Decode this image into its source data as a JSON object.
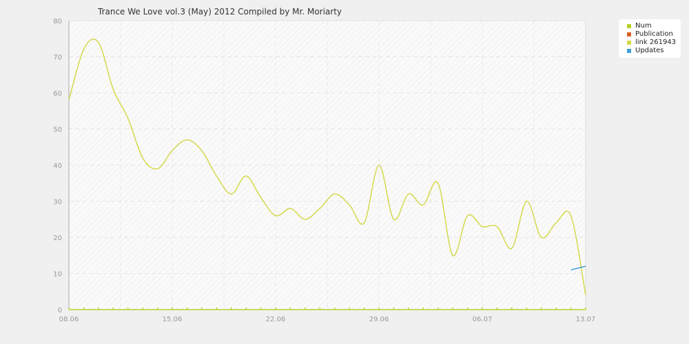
{
  "chart_data": {
    "type": "line",
    "title": "Trance We Love vol.3 (May) 2012 Compiled by Mr. Moriarty",
    "xlabel": "",
    "ylabel": "",
    "x_start": "2012-06-08",
    "x_end": "2012-07-13",
    "x_tick_labels": [
      "08.06",
      "15.06",
      "22.06",
      "29.06",
      "06.07",
      "13.07"
    ],
    "ylim": [
      0,
      80
    ],
    "y_ticks": [
      0,
      10,
      20,
      30,
      40,
      50,
      60,
      70,
      80
    ],
    "grid": true,
    "legend_position": "top-right",
    "series": [
      {
        "name": "Num",
        "color": "#b7d12b",
        "points": [
          [
            "2012-06-08",
            0
          ],
          [
            "2012-07-13",
            0
          ]
        ]
      },
      {
        "name": "Publication",
        "color": "#d95f27",
        "points": []
      },
      {
        "name": "link 261943",
        "color": "#d4d94a",
        "points": [
          [
            "2012-06-08",
            58
          ],
          [
            "2012-06-09",
            72
          ],
          [
            "2012-06-10",
            74
          ],
          [
            "2012-06-11",
            61
          ],
          [
            "2012-06-12",
            53
          ],
          [
            "2012-06-13",
            42
          ],
          [
            "2012-06-14",
            39
          ],
          [
            "2012-06-15",
            44
          ],
          [
            "2012-06-16",
            47
          ],
          [
            "2012-06-17",
            44
          ],
          [
            "2012-06-18",
            37
          ],
          [
            "2012-06-19",
            32
          ],
          [
            "2012-06-20",
            37
          ],
          [
            "2012-06-21",
            31
          ],
          [
            "2012-06-22",
            26
          ],
          [
            "2012-06-23",
            28
          ],
          [
            "2012-06-24",
            25
          ],
          [
            "2012-06-25",
            28
          ],
          [
            "2012-06-26",
            32
          ],
          [
            "2012-06-27",
            29
          ],
          [
            "2012-06-28",
            24
          ],
          [
            "2012-06-29",
            40
          ],
          [
            "2012-06-30",
            25
          ],
          [
            "2012-07-01",
            32
          ],
          [
            "2012-07-02",
            29
          ],
          [
            "2012-07-03",
            35
          ],
          [
            "2012-07-04",
            15
          ],
          [
            "2012-07-05",
            26
          ],
          [
            "2012-07-06",
            23
          ],
          [
            "2012-07-07",
            23
          ],
          [
            "2012-07-08",
            17
          ],
          [
            "2012-07-09",
            30
          ],
          [
            "2012-07-10",
            20
          ],
          [
            "2012-07-11",
            24
          ],
          [
            "2012-07-12",
            26
          ],
          [
            "2012-07-13",
            4
          ]
        ]
      },
      {
        "name": "Updates",
        "color": "#3f9fdc",
        "points": [
          [
            "2012-07-12",
            11
          ],
          [
            "2012-07-13",
            12
          ]
        ]
      }
    ]
  }
}
